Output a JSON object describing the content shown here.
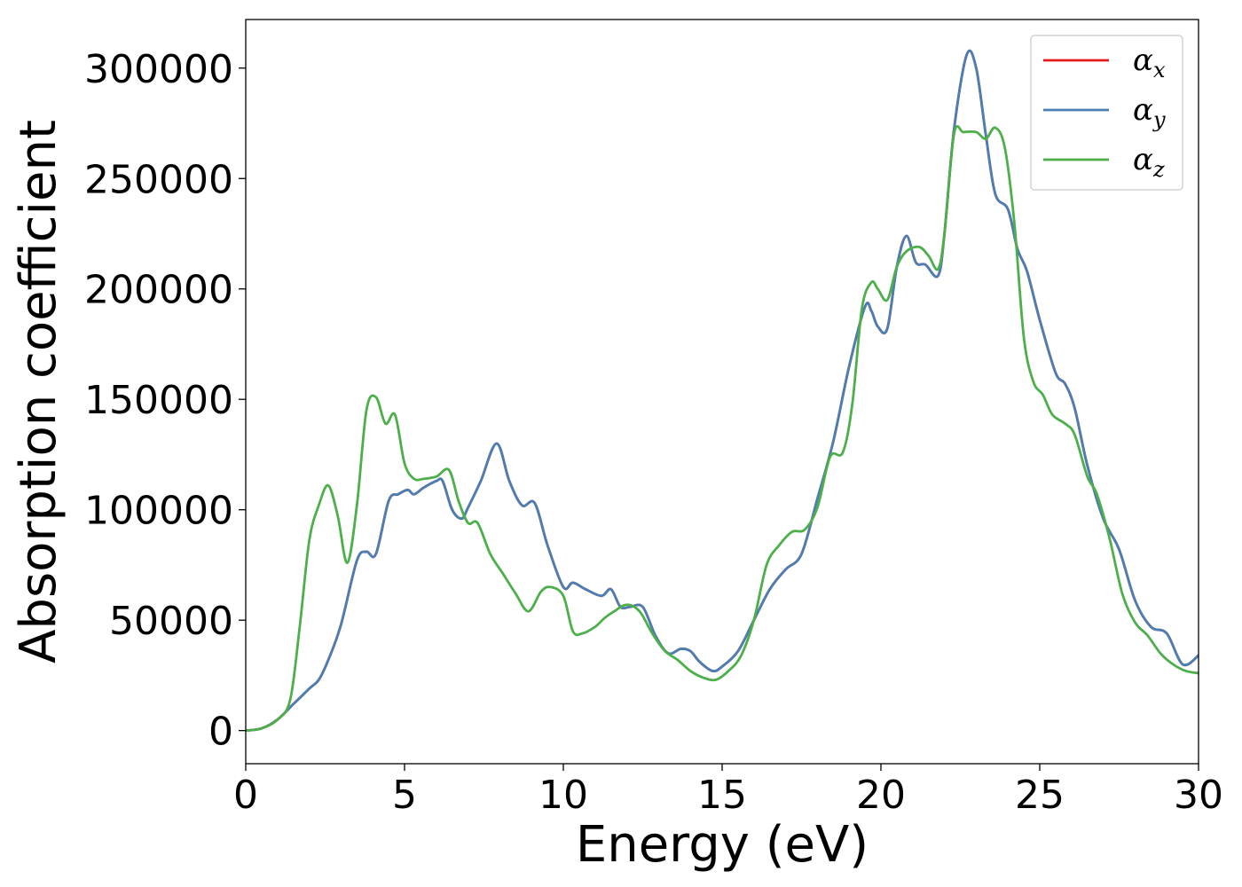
{
  "chart_data": {
    "type": "line",
    "title": "",
    "xlabel": "Energy (eV)",
    "ylabel": "Absorption coefficient",
    "xlim": [
      0,
      30
    ],
    "ylim": [
      -15000,
      322000
    ],
    "xticks": [
      0,
      5,
      10,
      15,
      20,
      25,
      30
    ],
    "xtick_labels": [
      "0",
      "5",
      "10",
      "15",
      "20",
      "25",
      "30"
    ],
    "yticks": [
      0,
      50000,
      100000,
      150000,
      200000,
      250000,
      300000
    ],
    "ytick_labels": [
      "0",
      "50000",
      "100000",
      "150000",
      "200000",
      "250000",
      "300000"
    ],
    "grid": false,
    "legend": "top-right",
    "series": [
      {
        "name": "αx",
        "label_base": "α",
        "label_sub": "x",
        "color": "#e41a1c",
        "x": [
          0,
          0.5,
          1,
          1.5,
          2,
          2.3,
          2.6,
          3,
          3.5,
          3.8,
          4.1,
          4.5,
          4.8,
          5.1,
          5.3,
          5.6,
          6,
          6.2,
          6.5,
          6.8,
          7,
          7.4,
          7.9,
          8.3,
          8.7,
          9.1,
          9.5,
          10,
          10.3,
          10.7,
          11.2,
          11.5,
          11.8,
          12.1,
          12.5,
          12.9,
          13.3,
          13.7,
          14,
          14.3,
          14.7,
          15,
          15.5,
          16,
          16.5,
          17,
          17.5,
          18,
          18.5,
          19,
          19.5,
          19.7,
          19.9,
          20.2,
          20.5,
          20.8,
          21.1,
          21.4,
          21.8,
          22,
          22.3,
          22.7,
          23,
          23.3,
          23.6,
          24,
          24.3,
          24.6,
          25,
          25.5,
          25.8,
          26.1,
          26.5,
          27,
          27.5,
          28,
          28.5,
          29,
          29.5,
          30
        ],
        "y": [
          0,
          1000,
          5000,
          12000,
          19000,
          23000,
          32000,
          48000,
          77000,
          81000,
          80000,
          104000,
          107000,
          109000,
          107000,
          110000,
          113000,
          113000,
          100000,
          96000,
          101000,
          113000,
          130000,
          113000,
          102000,
          103000,
          84000,
          65000,
          67000,
          64000,
          61000,
          64000,
          56000,
          56000,
          56000,
          43000,
          35000,
          37000,
          36000,
          31000,
          27000,
          29000,
          36000,
          50000,
          64000,
          73000,
          80000,
          105000,
          131000,
          165000,
          192000,
          190000,
          183000,
          182000,
          210000,
          224000,
          212000,
          211000,
          206000,
          225000,
          272000,
          306000,
          300000,
          270000,
          243000,
          236000,
          218000,
          208000,
          186000,
          162000,
          157000,
          146000,
          120000,
          96000,
          82000,
          59000,
          47000,
          44000,
          30000,
          34000
        ]
      },
      {
        "name": "αy",
        "label_base": "α",
        "label_sub": "y",
        "color": "#4a7fb4",
        "x": [
          0,
          0.5,
          1,
          1.5,
          2,
          2.3,
          2.6,
          3,
          3.5,
          3.8,
          4.1,
          4.5,
          4.8,
          5.1,
          5.3,
          5.6,
          6,
          6.2,
          6.5,
          6.8,
          7,
          7.4,
          7.9,
          8.3,
          8.7,
          9.1,
          9.5,
          10,
          10.3,
          10.7,
          11.2,
          11.5,
          11.8,
          12.1,
          12.5,
          12.9,
          13.3,
          13.7,
          14,
          14.3,
          14.7,
          15,
          15.5,
          16,
          16.5,
          17,
          17.5,
          18,
          18.5,
          19,
          19.5,
          19.7,
          19.9,
          20.2,
          20.5,
          20.8,
          21.1,
          21.4,
          21.8,
          22,
          22.3,
          22.7,
          23,
          23.3,
          23.6,
          24,
          24.3,
          24.6,
          25,
          25.5,
          25.8,
          26.1,
          26.5,
          27,
          27.5,
          28,
          28.5,
          29,
          29.5,
          30
        ],
        "y": [
          0,
          1000,
          5000,
          12000,
          19000,
          23000,
          32000,
          48000,
          77000,
          81000,
          80000,
          104000,
          107000,
          109000,
          107000,
          110000,
          113000,
          113000,
          100000,
          96000,
          101000,
          113000,
          130000,
          113000,
          102000,
          103000,
          84000,
          65000,
          67000,
          64000,
          61000,
          64000,
          56000,
          56000,
          56000,
          43000,
          35000,
          37000,
          36000,
          31000,
          27000,
          29000,
          36000,
          50000,
          64000,
          73000,
          80000,
          105000,
          131000,
          165000,
          192000,
          190000,
          183000,
          182000,
          210000,
          224000,
          212000,
          211000,
          206000,
          225000,
          272000,
          306000,
          300000,
          270000,
          243000,
          236000,
          218000,
          208000,
          186000,
          162000,
          157000,
          146000,
          120000,
          96000,
          82000,
          59000,
          47000,
          44000,
          30000,
          34000
        ]
      },
      {
        "name": "αz",
        "label_base": "α",
        "label_sub": "z",
        "color": "#4daf4a",
        "x": [
          0,
          0.5,
          1,
          1.4,
          1.7,
          2,
          2.3,
          2.6,
          2.9,
          3.2,
          3.5,
          3.8,
          4.1,
          4.4,
          4.7,
          5,
          5.3,
          5.6,
          6,
          6.4,
          6.7,
          7,
          7.3,
          7.7,
          8.1,
          8.5,
          8.9,
          9.3,
          9.6,
          10,
          10.3,
          10.6,
          11,
          11.3,
          11.6,
          12,
          12.4,
          12.8,
          13.2,
          13.6,
          14,
          14.4,
          14.8,
          15.2,
          15.6,
          16,
          16.4,
          16.8,
          17.2,
          17.6,
          18,
          18.4,
          18.8,
          19.1,
          19.4,
          19.7,
          19.9,
          20.2,
          20.5,
          20.8,
          21.2,
          21.5,
          21.8,
          22,
          22.3,
          22.6,
          23,
          23.3,
          23.6,
          23.9,
          24.2,
          24.5,
          24.8,
          25.1,
          25.4,
          25.8,
          26.1,
          26.5,
          26.8,
          27.2,
          27.6,
          28,
          28.4,
          28.8,
          29.2,
          29.6,
          30
        ],
        "y": [
          0,
          1000,
          5000,
          14000,
          47000,
          86000,
          102000,
          111000,
          97000,
          76000,
          102000,
          145000,
          151000,
          139000,
          143000,
          121000,
          114000,
          114000,
          115000,
          118000,
          104000,
          94000,
          94000,
          80000,
          71000,
          62000,
          54000,
          63000,
          65000,
          61000,
          45000,
          44000,
          47000,
          51000,
          54000,
          57000,
          54000,
          44000,
          36000,
          32000,
          27000,
          24000,
          23000,
          27000,
          34000,
          50000,
          75000,
          84000,
          90000,
          91000,
          101000,
          124000,
          126000,
          148000,
          191000,
          203000,
          200000,
          195000,
          210000,
          217000,
          219000,
          215000,
          209000,
          225000,
          270000,
          271000,
          271000,
          268000,
          273000,
          264000,
          230000,
          178000,
          158000,
          152000,
          143000,
          139000,
          134000,
          115000,
          107000,
          87000,
          62000,
          49000,
          43000,
          35000,
          30000,
          27000,
          26000
        ]
      }
    ]
  }
}
